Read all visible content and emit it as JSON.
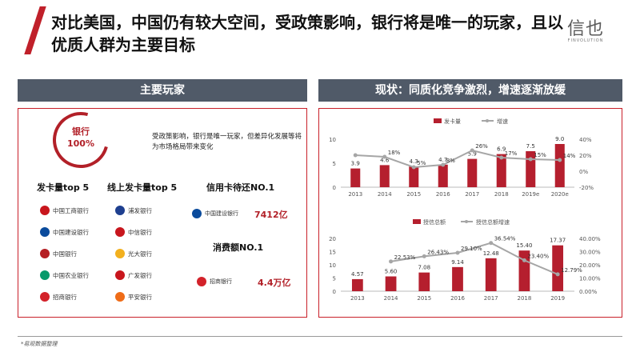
{
  "header": {
    "title": "对比美国，中国仍有较大空间，受政策影响，银行将是唯一的玩家，且以优质人群为主要目标",
    "logo_text": "信也",
    "logo_sub": "FINVOLUTION"
  },
  "left": {
    "header": "主要玩家",
    "circle_line1": "银行",
    "circle_line2": "100%",
    "description": "受政策影响，银行是唯一玩家，但差异化发展等将为市场格局带来变化",
    "col1_title": "发卡量top 5",
    "col2_title": "线上发卡量top 5",
    "col3_title": "信用卡待还NO.1",
    "col3b_title": "消费额NO.1",
    "col1_banks": [
      {
        "name": "中国工商银行",
        "color": "#c8161d"
      },
      {
        "name": "中国建设银行",
        "color": "#0a4b9c"
      },
      {
        "name": "中国银行",
        "color": "#b51f24"
      },
      {
        "name": "中国农业银行",
        "color": "#079a6b"
      },
      {
        "name": "招商银行",
        "color": "#d3222a"
      }
    ],
    "col2_banks": [
      {
        "name": "浦发银行",
        "color": "#1e3f8f"
      },
      {
        "name": "中信银行",
        "color": "#c8161d"
      },
      {
        "name": "光大银行",
        "color": "#f2b01e"
      },
      {
        "name": "广发银行",
        "color": "#c8161d"
      },
      {
        "name": "平安银行",
        "color": "#ef6c18"
      }
    ],
    "col3_bank": "中国建设银行",
    "col3_value": "7412亿",
    "col3b_bank": "招商银行",
    "col3b_value": "4.4万亿"
  },
  "right": {
    "header": "现状：同质化竞争激烈，增速逐渐放缓"
  },
  "chart_data": [
    {
      "type": "bar",
      "categories": [
        "2013",
        "2014",
        "2015",
        "2016",
        "2017",
        "2018",
        "2019e",
        "2020e"
      ],
      "series": [
        {
          "name": "发卡量",
          "type": "bar",
          "values": [
            3.9,
            4.6,
            4.3,
            4.7,
            5.9,
            6.9,
            7.5,
            9.0
          ],
          "labels": [
            "3.9",
            "4.6",
            "4.3",
            "4.7",
            "5.9",
            "6.9",
            "7.5",
            "9.0"
          ]
        },
        {
          "name": "增速",
          "type": "line",
          "values": [
            20,
            18,
            5,
            8,
            26,
            17,
            15,
            14
          ],
          "labels": [
            "",
            "18%",
            "5%",
            "8%",
            "26%",
            "17%",
            "15%",
            "14%"
          ]
        }
      ],
      "ylim": [
        0,
        10
      ],
      "yticks": [
        0,
        5,
        10
      ],
      "y2lim": [
        -20,
        40
      ],
      "y2ticks": [
        "40%",
        "20%",
        "0%",
        "-20%"
      ],
      "colors": {
        "bar": "#b51f2e",
        "line": "#a6a6a6"
      }
    },
    {
      "type": "bar",
      "categories": [
        "2013",
        "2014",
        "2015",
        "2016",
        "2017",
        "2018",
        "2019"
      ],
      "series": [
        {
          "name": "授信总额",
          "type": "bar",
          "values": [
            4.57,
            5.6,
            7.08,
            9.14,
            12.48,
            15.4,
            17.37
          ],
          "labels": [
            "4.57",
            "5.60",
            "7.08",
            "9.14",
            "12.48",
            "15.40",
            "17.37"
          ]
        },
        {
          "name": "授信总额增速",
          "type": "line",
          "values": [
            null,
            22.53,
            26.43,
            29.1,
            36.54,
            23.4,
            12.79
          ],
          "labels": [
            "",
            "22.53%",
            "26.43%",
            "29.10%",
            "36.54%",
            "23.40%",
            "12.79%"
          ]
        }
      ],
      "ylim": [
        0,
        20
      ],
      "yticks": [
        0,
        5,
        10,
        15,
        20
      ],
      "y2lim": [
        0,
        40
      ],
      "y2ticks": [
        "40.00%",
        "30.00%",
        "20.00%",
        "10.00%",
        "0.00%"
      ],
      "colors": {
        "bar": "#b51f2e",
        "line": "#a6a6a6"
      }
    }
  ],
  "footnote": "*易观数据整理"
}
